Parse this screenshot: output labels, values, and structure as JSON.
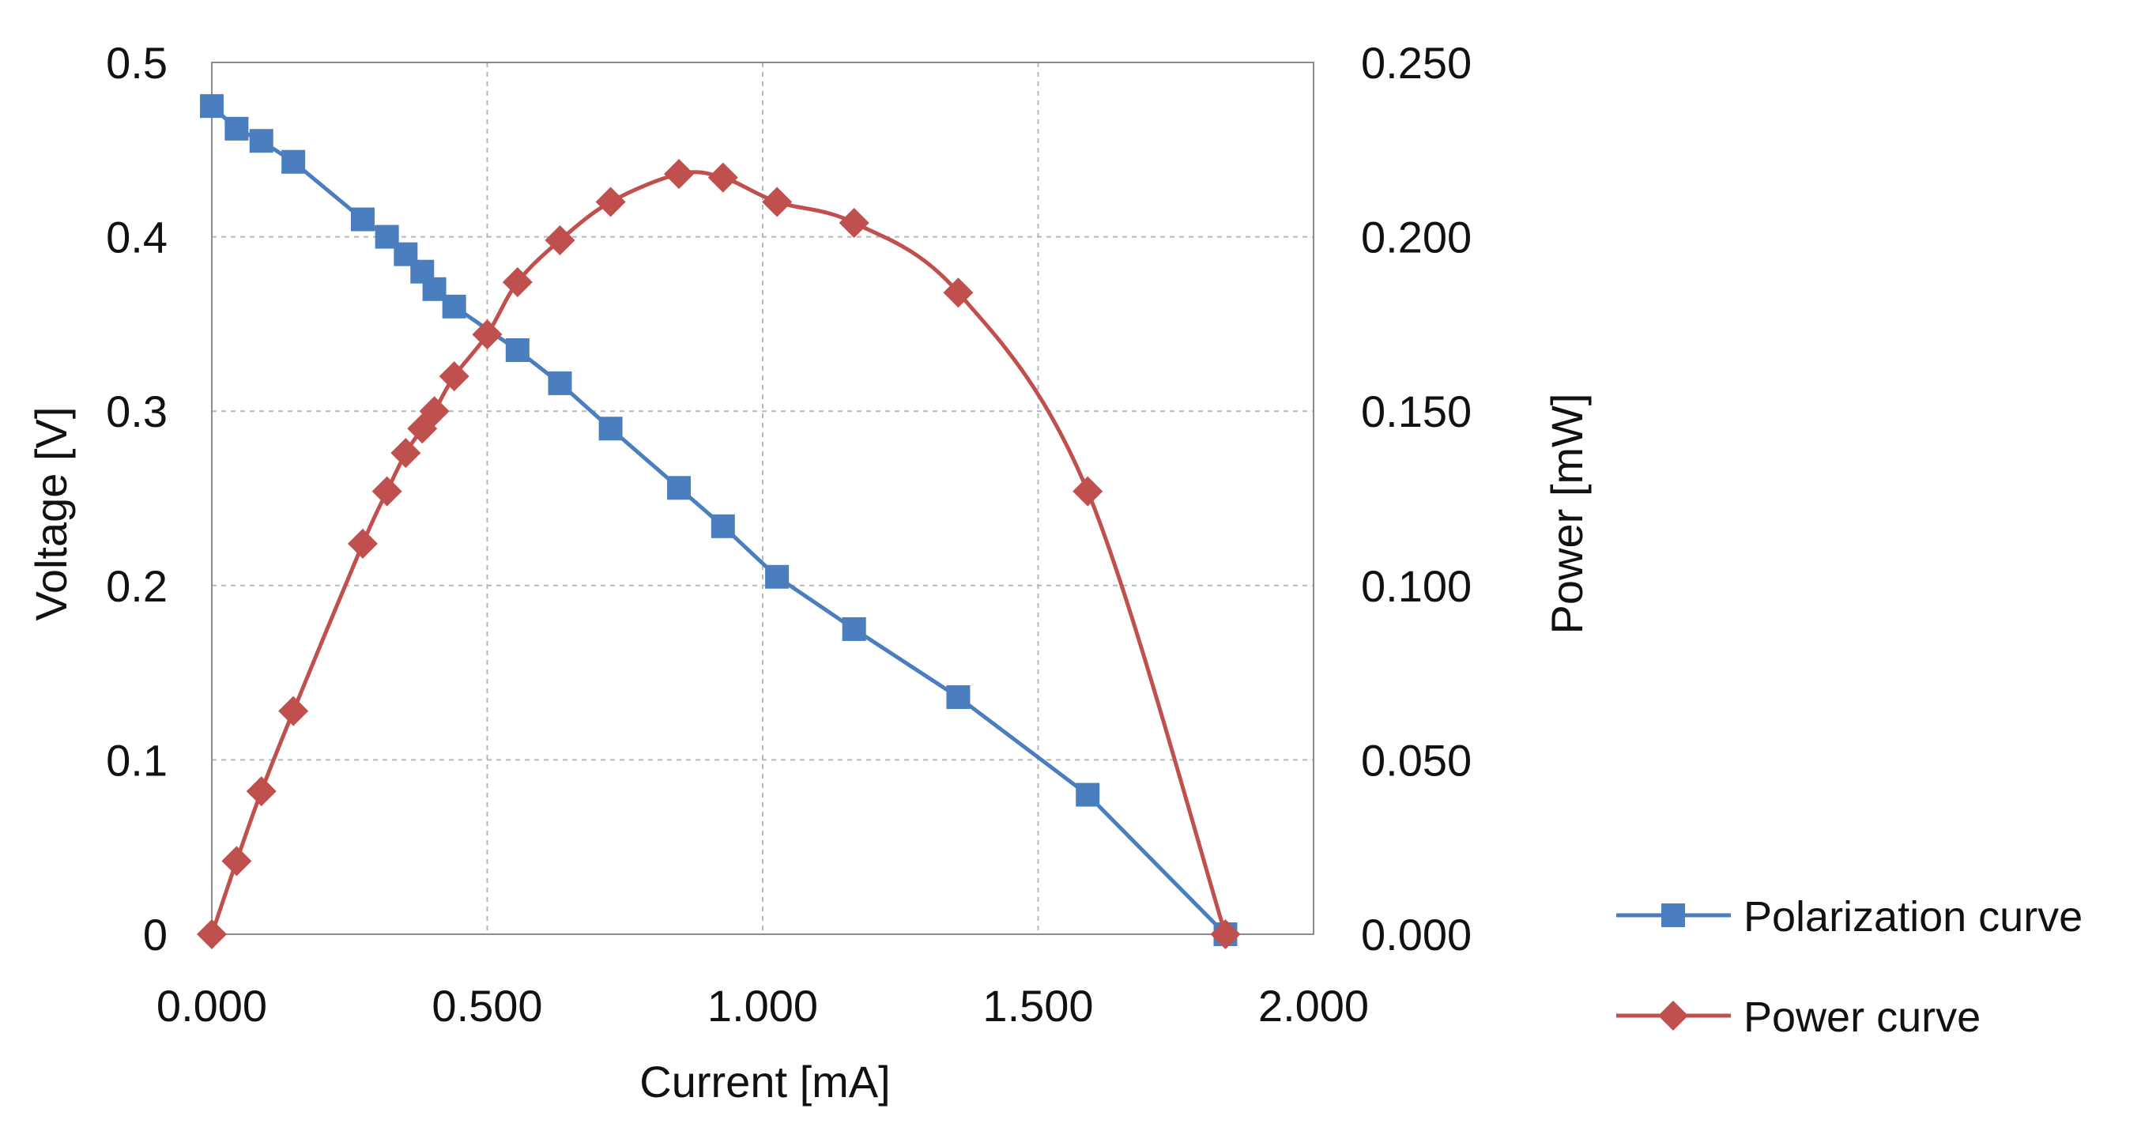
{
  "chart_data": {
    "type": "line",
    "xlabel": "Current [mA]",
    "ylabel": "Voltage [V]",
    "y2label": "Power [mW]",
    "xlim": [
      0,
      2
    ],
    "ylim": [
      0,
      0.5
    ],
    "y2lim": [
      0,
      0.25
    ],
    "x_ticks": [
      0,
      0.5,
      1.0,
      1.5,
      2.0
    ],
    "x_tick_labels": [
      "0.000",
      "0.500",
      "1.000",
      "1.500",
      "2.000"
    ],
    "y_ticks": [
      0,
      0.1,
      0.2,
      0.3,
      0.4,
      0.5
    ],
    "y_tick_labels": [
      "0",
      "0.1",
      "0.2",
      "0.3",
      "0.4",
      "0.5"
    ],
    "y2_ticks": [
      0,
      0.05,
      0.1,
      0.15,
      0.2,
      0.25
    ],
    "y2_tick_labels": [
      "0.000",
      "0.050",
      "0.100",
      "0.150",
      "0.200",
      "0.250"
    ],
    "grid": true,
    "legend_position": "right",
    "series": [
      {
        "name": "Polarization curve",
        "axis": "left",
        "color": "#4a7ebf",
        "marker": "square",
        "smooth": false,
        "x": [
          0.0,
          0.045,
          0.09,
          0.148,
          0.274,
          0.318,
          0.352,
          0.382,
          0.404,
          0.44,
          0.555,
          0.632,
          0.724,
          0.848,
          0.928,
          1.026,
          1.166,
          1.355,
          1.59,
          1.84
        ],
        "y": [
          0.475,
          0.462,
          0.455,
          0.443,
          0.41,
          0.4,
          0.39,
          0.38,
          0.37,
          0.36,
          0.335,
          0.316,
          0.29,
          0.256,
          0.234,
          0.205,
          0.175,
          0.136,
          0.08,
          0.0
        ]
      },
      {
        "name": "Power curve",
        "axis": "right",
        "color": "#c0504d",
        "marker": "diamond",
        "smooth": true,
        "x": [
          0.0,
          0.045,
          0.09,
          0.148,
          0.274,
          0.318,
          0.352,
          0.382,
          0.404,
          0.44,
          0.5,
          0.555,
          0.632,
          0.724,
          0.848,
          0.928,
          1.026,
          1.166,
          1.355,
          1.59,
          1.84
        ],
        "y": [
          0.0,
          0.021,
          0.041,
          0.064,
          0.112,
          0.127,
          0.138,
          0.145,
          0.15,
          0.16,
          0.172,
          0.187,
          0.199,
          0.21,
          0.218,
          0.217,
          0.21,
          0.204,
          0.184,
          0.127,
          0.0
        ]
      }
    ]
  }
}
